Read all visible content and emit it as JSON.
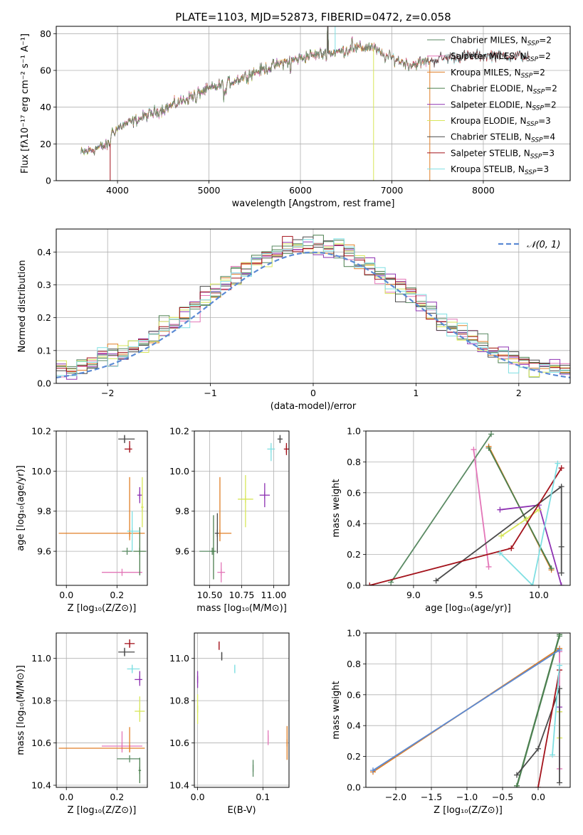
{
  "colors": {
    "Chabrier MILES": "#5a8a63",
    "Salpeter MILES": "#e376b8",
    "Kroupa MILES": "#e07f27",
    "Chabrier ELODIE": "#4b7f4e",
    "Salpeter ELODIE": "#8e32b2",
    "Kroupa ELODIE": "#d7e659",
    "Chabrier STELIB": "#4a4a4a",
    "Salpeter STELIB": "#a3121b",
    "Kroupa STELIB": "#7fdfe2",
    "model_blue": "#5b8ad4"
  },
  "chart_data": [
    {
      "id": "spectrum",
      "type": "line",
      "title": "PLATE=1103, MJD=52873, FIBERID=0472, z=0.058",
      "xlabel_pre": "wavelength [Angstrom, rest frame]",
      "ylabel": "Flux [fλ10⁻¹⁷ erg cm⁻² s⁻¹ A⁻¹]",
      "xlim": [
        3330,
        8950
      ],
      "ylim": [
        0,
        84
      ],
      "xticks": [
        4000,
        5000,
        6000,
        7000,
        8000
      ],
      "yticks": [
        0,
        20,
        40,
        60,
        80
      ],
      "legend_position": "upper-right",
      "legend": [
        {
          "label": "Chabrier MILES, N",
          "sub": "SSP",
          "suffix": "=2"
        },
        {
          "label": "Salpeter MILES, N",
          "sub": "SSP",
          "suffix": "=2"
        },
        {
          "label": "Kroupa MILES, N",
          "sub": "SSP",
          "suffix": "=2"
        },
        {
          "label": "Chabrier ELODIE, N",
          "sub": "SSP",
          "suffix": "=2"
        },
        {
          "label": "Salpeter ELODIE, N",
          "sub": "SSP",
          "suffix": "=2"
        },
        {
          "label": "Kroupa ELODIE, N",
          "sub": "SSP",
          "suffix": "=3"
        },
        {
          "label": "Chabrier STELIB, N",
          "sub": "SSP",
          "suffix": "=4"
        },
        {
          "label": "Salpeter STELIB, N",
          "sub": "SSP",
          "suffix": "=3"
        },
        {
          "label": "Kroupa STELIB, N",
          "sub": "SSP",
          "suffix": "=3"
        }
      ],
      "continuum": {
        "x": [
          3600,
          3800,
          3920,
          3930,
          4050,
          4300,
          4600,
          4900,
          5200,
          5500,
          5800,
          6100,
          6400,
          6600,
          6780,
          6900,
          7000,
          7200,
          7400,
          7600,
          7800,
          8000,
          8300,
          8700,
          8950
        ],
        "y": [
          15,
          18,
          20,
          26,
          30,
          35,
          41,
          48,
          53,
          59,
          64,
          68,
          70,
          72,
          73,
          68,
          67,
          63,
          65,
          67,
          68,
          68,
          68,
          68,
          68
        ]
      }
    },
    {
      "id": "residuals",
      "type": "histogram",
      "xlabel": "(data-model)/error",
      "ylabel": "Normed distribution",
      "xlim": [
        -2.5,
        2.5
      ],
      "ylim": [
        0,
        0.47
      ],
      "xticks": [
        -2,
        -1,
        0,
        1,
        2
      ],
      "yticks": [
        0.0,
        0.1,
        0.2,
        0.3,
        0.4
      ],
      "legend_position": "upper-right",
      "curve_label": "𝒩(0, 1)",
      "curve": {
        "mean": 0,
        "sigma": 1
      }
    },
    {
      "id": "age-vs-Z",
      "type": "errorbar",
      "xlabel": "Z [log₁₀(Z/Z⊙)]",
      "ylabel": "age  [log₁₀(age/yr)]",
      "xlim": [
        -0.04,
        0.32
      ],
      "ylim": [
        9.43,
        10.2
      ],
      "xticks": [
        0.0,
        0.2
      ],
      "yticks": [
        9.6,
        9.8,
        10.0,
        10.2
      ],
      "points": [
        {
          "model": "Chabrier MILES",
          "x": 0.24,
          "y": 9.6,
          "xerr": [
            0.02,
            0.02
          ],
          "yerr": [
            0,
            0
          ]
        },
        {
          "model": "Salpeter MILES",
          "x": 0.22,
          "y": 9.495,
          "xerr": [
            0.08,
            0.08
          ],
          "yerr": [
            0,
            0
          ]
        },
        {
          "model": "Kroupa MILES",
          "x": 0.25,
          "y": 9.69,
          "xerr": [
            0.28,
            0.06
          ],
          "yerr": [
            0.035,
            0.28
          ]
        },
        {
          "model": "Chabrier ELODIE",
          "x": 0.29,
          "y": 9.6,
          "xerr": [
            0.025,
            0.025
          ],
          "yerr": [
            0.12,
            0.12
          ]
        },
        {
          "model": "Salpeter ELODIE",
          "x": 0.29,
          "y": 9.88,
          "xerr": [
            0.01,
            0.01
          ],
          "yerr": [
            0.04,
            0.04
          ]
        },
        {
          "model": "Kroupa ELODIE",
          "x": 0.3,
          "y": 9.82,
          "xerr": [
            0.005,
            0.005
          ],
          "yerr": [
            0.1,
            0.15
          ]
        },
        {
          "model": "Chabrier STELIB",
          "x": 0.23,
          "y": 10.16,
          "xerr": [
            0.025,
            0.04
          ],
          "yerr": [
            0.02,
            0.02
          ]
        },
        {
          "model": "Salpeter STELIB",
          "x": 0.25,
          "y": 10.11,
          "xerr": [
            0.02,
            0.01
          ],
          "yerr": [
            0.015,
            0.04
          ]
        },
        {
          "model": "Kroupa STELIB",
          "x": 0.26,
          "y": 9.7,
          "xerr": [
            0.02,
            0.03
          ],
          "yerr": [
            0.1,
            0.1
          ]
        }
      ]
    },
    {
      "id": "age-vs-mass",
      "type": "errorbar",
      "xlabel": "mass [log₁₀(M/M⊙)]",
      "ylabel": "",
      "xlim": [
        10.38,
        11.12
      ],
      "ylim": [
        9.43,
        10.2
      ],
      "xticks": [
        10.5,
        10.75,
        11.0
      ],
      "yticks": [
        9.6,
        9.8,
        10.0,
        10.2
      ],
      "points": [
        {
          "model": "Chabrier MILES",
          "x": 10.52,
          "y": 9.6,
          "xerr": [
            0.1,
            0.02
          ],
          "yerr": [
            0,
            0
          ]
        },
        {
          "model": "Salpeter MILES",
          "x": 10.59,
          "y": 9.495,
          "xerr": [
            0.03,
            0.03
          ],
          "yerr": [
            0.05,
            0.05
          ]
        },
        {
          "model": "Kroupa MILES",
          "x": 10.58,
          "y": 9.69,
          "xerr": [
            0.02,
            0.09
          ],
          "yerr": [
            0.04,
            0.28
          ]
        },
        {
          "model": "Chabrier ELODIE",
          "x": 10.53,
          "y": 9.6,
          "xerr": [
            0.02,
            0.02
          ],
          "yerr": [
            0.14,
            0.18
          ]
        },
        {
          "model": "Salpeter ELODIE",
          "x": 10.93,
          "y": 9.88,
          "xerr": [
            0.04,
            0.04
          ],
          "yerr": [
            0.06,
            0.06
          ]
        },
        {
          "model": "Kroupa ELODIE",
          "x": 10.78,
          "y": 9.86,
          "xerr": [
            0.06,
            0.06
          ],
          "yerr": [
            0.14,
            0.12
          ]
        },
        {
          "model": "Chabrier STELIB",
          "x": 11.05,
          "y": 10.16,
          "xerr": [
            0.02,
            0.02
          ],
          "yerr": [
            0.02,
            0.02
          ]
        },
        {
          "model": "Salpeter STELIB",
          "x": 11.1,
          "y": 10.11,
          "xerr": [
            0.02,
            0.02
          ],
          "yerr": [
            0.03,
            0.03
          ]
        },
        {
          "model": "Kroupa STELIB",
          "x": 10.98,
          "y": 10.11,
          "xerr": [
            0.03,
            0.03
          ],
          "yerr": [
            0.06,
            0.03
          ]
        },
        {
          "model": "Chabrier STELIB",
          "x": 10.56,
          "y": 9.69,
          "xerr": [
            0.02,
            0.01
          ],
          "yerr": [
            0.1,
            0.1
          ]
        }
      ]
    },
    {
      "id": "weight-vs-age",
      "type": "line",
      "xlabel": "age  [log₁₀(age/yr)]",
      "ylabel": "mass weight",
      "xlim": [
        8.62,
        10.25
      ],
      "ylim": [
        0,
        1
      ],
      "xticks": [
        9.0,
        9.5,
        10.0
      ],
      "yticks": [
        0.0,
        0.2,
        0.4,
        0.6,
        0.8,
        1.0
      ],
      "series": [
        {
          "model": "Chabrier MILES",
          "x": [
            8.82,
            9.62
          ],
          "y": [
            0.02,
            0.98
          ]
        },
        {
          "model": "Salpeter MILES",
          "x": [
            9.48,
            9.6
          ],
          "y": [
            0.88,
            0.12
          ]
        },
        {
          "model": "Kroupa MILES",
          "x": [
            9.6,
            10.1
          ],
          "y": [
            0.9,
            0.1
          ]
        },
        {
          "model": "Chabrier ELODIE",
          "x": [
            9.6,
            10.1
          ],
          "y": [
            0.89,
            0.11
          ]
        },
        {
          "model": "Salpeter ELODIE",
          "x": [
            9.69,
            10.0,
            10.18
          ],
          "y": [
            0.49,
            0.52,
            0.0
          ]
        },
        {
          "model": "Kroupa ELODIE",
          "x": [
            9.7,
            9.9,
            10.0
          ],
          "y": [
            0.32,
            0.43,
            0.49
          ]
        },
        {
          "model": "Chabrier STELIB",
          "x": [
            9.18,
            10.18,
            10.18,
            10.18
          ],
          "y": [
            0.03,
            0.64,
            0.25,
            0.08
          ]
        },
        {
          "model": "Salpeter STELIB",
          "x": [
            8.65,
            9.78,
            10.18
          ],
          "y": [
            0.0,
            0.24,
            0.76
          ]
        },
        {
          "model": "Kroupa STELIB",
          "x": [
            9.69,
            9.95,
            10.15
          ],
          "y": [
            0.21,
            0.0,
            0.79
          ]
        }
      ]
    },
    {
      "id": "mass-vs-Z",
      "type": "errorbar",
      "xlabel": "Z [log₁₀(Z/Z⊙)]",
      "ylabel": "mass [log₁₀(M/M⊙)]",
      "xlim": [
        -0.04,
        0.32
      ],
      "ylim": [
        10.39,
        11.12
      ],
      "xticks": [
        0.0,
        0.2
      ],
      "yticks": [
        10.4,
        10.6,
        10.8,
        11.0
      ],
      "points": [
        {
          "model": "Chabrier MILES",
          "x": 0.25,
          "y": 10.525,
          "xerr": [
            0.05,
            0.04
          ],
          "yerr": [
            0,
            0
          ]
        },
        {
          "model": "Salpeter MILES",
          "x": 0.22,
          "y": 10.585,
          "xerr": [
            0.08,
            0.08
          ],
          "yerr": [
            0.03,
            0.07
          ]
        },
        {
          "model": "Kroupa MILES",
          "x": 0.25,
          "y": 10.575,
          "xerr": [
            0.28,
            0.06
          ],
          "yerr": [
            0.02,
            0.1
          ]
        },
        {
          "model": "Chabrier ELODIE",
          "x": 0.29,
          "y": 10.47,
          "xerr": [
            0.005,
            0.005
          ],
          "yerr": [
            0.06,
            0.06
          ]
        },
        {
          "model": "Salpeter ELODIE",
          "x": 0.29,
          "y": 10.9,
          "xerr": [
            0.02,
            0.01
          ],
          "yerr": [
            0.03,
            0.04
          ]
        },
        {
          "model": "Kroupa ELODIE",
          "x": 0.29,
          "y": 10.75,
          "xerr": [
            0.02,
            0.02
          ],
          "yerr": [
            0.05,
            0.07
          ]
        },
        {
          "model": "Chabrier STELIB",
          "x": 0.23,
          "y": 11.03,
          "xerr": [
            0.025,
            0.04
          ],
          "yerr": [
            0.02,
            0.02
          ]
        },
        {
          "model": "Salpeter STELIB",
          "x": 0.25,
          "y": 11.07,
          "xerr": [
            0.02,
            0.02
          ],
          "yerr": [
            0.02,
            0.02
          ]
        },
        {
          "model": "Kroupa STELIB",
          "x": 0.26,
          "y": 10.95,
          "xerr": [
            0.02,
            0.03
          ],
          "yerr": [
            0.02,
            0.02
          ]
        }
      ]
    },
    {
      "id": "mass-vs-ebv",
      "type": "errorbar",
      "xlabel": "E(B-V)",
      "ylabel": "",
      "xlim": [
        -0.005,
        0.14
      ],
      "ylim": [
        10.39,
        11.12
      ],
      "xticks": [
        0.0,
        0.1
      ],
      "yticks": [
        10.4,
        10.6,
        10.8,
        11.0
      ],
      "points": [
        {
          "model": "Chabrier MILES",
          "x": 0.085,
          "y": 10.48,
          "xerr": [
            0,
            0
          ],
          "yerr": [
            0.04,
            0.04
          ]
        },
        {
          "model": "Salpeter MILES",
          "x": 0.108,
          "y": 10.62,
          "xerr": [
            0,
            0
          ],
          "yerr": [
            0.03,
            0.04
          ]
        },
        {
          "model": "Kroupa MILES",
          "x": 0.137,
          "y": 10.6,
          "xerr": [
            0,
            0
          ],
          "yerr": [
            0.08,
            0.08
          ]
        },
        {
          "model": "Salpeter ELODIE",
          "x": 0.0,
          "y": 10.9,
          "xerr": [
            0,
            0
          ],
          "yerr": [
            0.04,
            0.04
          ]
        },
        {
          "model": "Kroupa ELODIE",
          "x": 0.0,
          "y": 10.76,
          "xerr": [
            0,
            0
          ],
          "yerr": [
            0.07,
            0.07
          ]
        },
        {
          "model": "Chabrier STELIB",
          "x": 0.037,
          "y": 11.01,
          "xerr": [
            0,
            0
          ],
          "yerr": [
            0.02,
            0.02
          ]
        },
        {
          "model": "Salpeter STELIB",
          "x": 0.033,
          "y": 11.06,
          "xerr": [
            0,
            0
          ],
          "yerr": [
            0.02,
            0.02
          ]
        },
        {
          "model": "Kroupa STELIB",
          "x": 0.057,
          "y": 10.95,
          "xerr": [
            0,
            0
          ],
          "yerr": [
            0.02,
            0.02
          ]
        }
      ]
    },
    {
      "id": "weight-vs-Z",
      "type": "line",
      "xlabel": "Z [log₁₀(Z/Z⊙)]",
      "ylabel": "mass weight",
      "xlim": [
        -2.42,
        0.45
      ],
      "ylim": [
        0,
        1
      ],
      "xticks": [
        -2.0,
        -1.5,
        -1.0,
        -0.5,
        0.0
      ],
      "yticks": [
        0.0,
        0.2,
        0.4,
        0.6,
        0.8,
        1.0
      ],
      "series": [
        {
          "model": "Chabrier MILES",
          "x": [
            -0.3,
            0.3
          ],
          "y": [
            0.0,
            0.98
          ]
        },
        {
          "model": "Salpeter MILES",
          "x": [
            0.3,
            0.3
          ],
          "y": [
            0.88,
            0.12
          ]
        },
        {
          "model": "Kroupa MILES",
          "x": [
            -2.32,
            0.3
          ],
          "y": [
            0.1,
            0.9
          ]
        },
        {
          "model": "Chabrier ELODIE",
          "x": [
            -0.3,
            0.3
          ],
          "y": [
            0.01,
            0.99
          ]
        },
        {
          "model": "Salpeter ELODIE",
          "x": [
            0.3,
            0.3
          ],
          "y": [
            0.49,
            0.52
          ]
        },
        {
          "model": "Kroupa ELODIE",
          "x": [
            0.3,
            0.3
          ],
          "y": [
            0.32,
            0.49
          ]
        },
        {
          "model": "Chabrier STELIB",
          "x": [
            -0.3,
            0.0,
            0.3,
            0.3
          ],
          "y": [
            0.08,
            0.25,
            0.64,
            0.03
          ]
        },
        {
          "model": "Salpeter STELIB",
          "x": [
            0.0,
            0.3
          ],
          "y": [
            0.0,
            0.76
          ]
        },
        {
          "model": "Kroupa STELIB",
          "x": [
            0.2,
            0.3
          ],
          "y": [
            0.21,
            0.79
          ]
        },
        {
          "model": "model_blue",
          "x": [
            -2.32,
            0.3
          ],
          "y": [
            0.11,
            0.89
          ]
        }
      ]
    }
  ]
}
